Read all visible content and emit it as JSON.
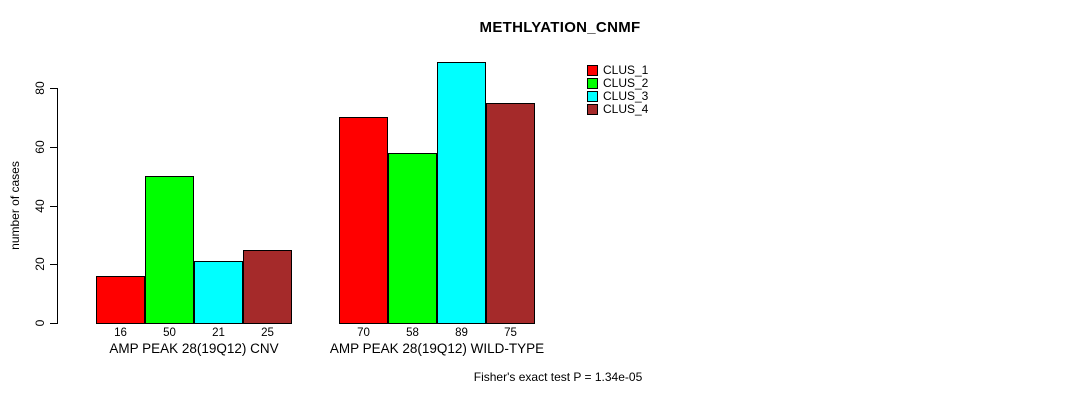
{
  "chart_data": {
    "type": "bar",
    "title": "METHLYATION_CNMF",
    "ylabel": "number of cases",
    "xlabel": "",
    "categories": [
      "AMP PEAK 28(19Q12) CNV",
      "AMP PEAK 28(19Q12) WILD-TYPE"
    ],
    "series": [
      {
        "name": "CLUS_1",
        "color": "#ff0000",
        "values": [
          16,
          70
        ]
      },
      {
        "name": "CLUS_2",
        "color": "#00ff00",
        "values": [
          50,
          58
        ]
      },
      {
        "name": "CLUS_3",
        "color": "#00ffff",
        "values": [
          21,
          89
        ]
      },
      {
        "name": "CLUS_4",
        "color": "#a52a2a",
        "values": [
          25,
          75
        ]
      }
    ],
    "ylim": [
      0,
      80
    ],
    "yticks": [
      0,
      20,
      40,
      60,
      80
    ],
    "grid": false,
    "legend_position": "top-right",
    "bar_border_color": "#000000",
    "annotation": "Fisher's exact test P = 1.34e-05"
  }
}
